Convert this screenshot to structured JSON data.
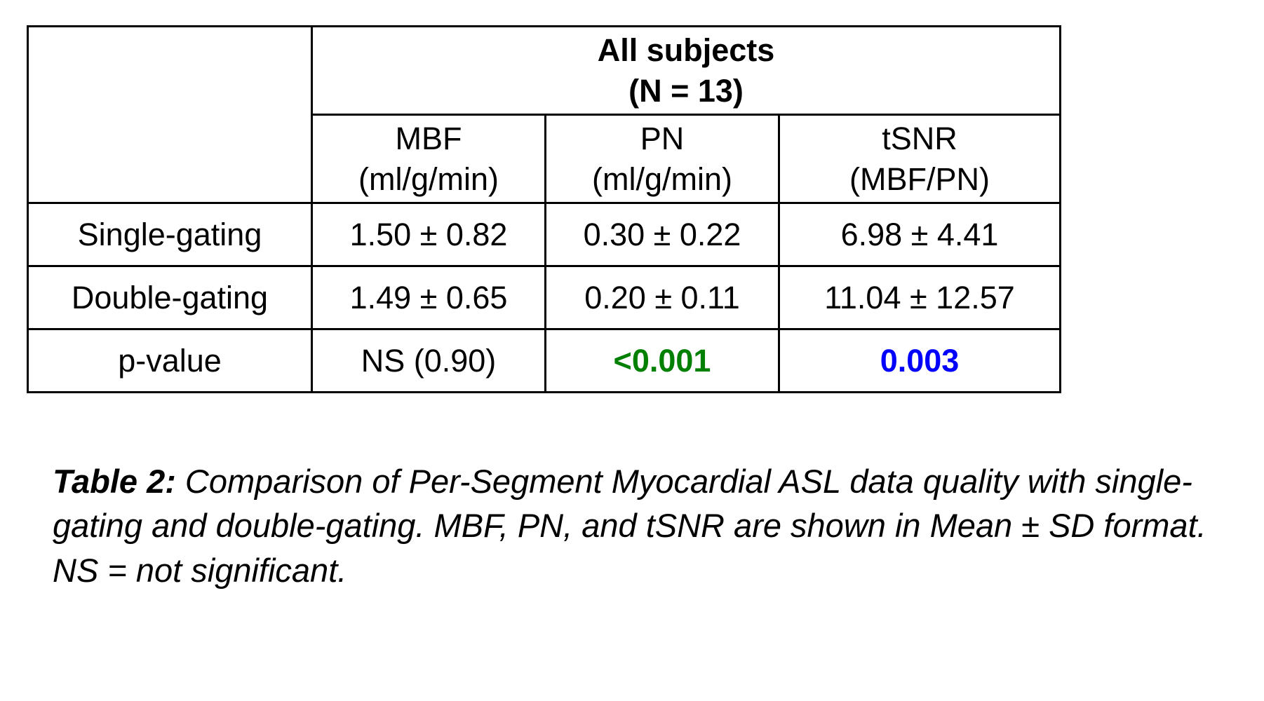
{
  "table": {
    "span_header_line1": "All subjects",
    "span_header_line2": "(N = 13)",
    "col_headers": [
      {
        "line1": "MBF",
        "line2": "(ml/g/min)"
      },
      {
        "line1": "PN",
        "line2": "(ml/g/min)"
      },
      {
        "line1": "tSNR",
        "line2": "(MBF/PN)"
      }
    ],
    "rows": [
      {
        "label": "Single-gating",
        "values": [
          "1.50 ± 0.82",
          "0.30 ± 0.22",
          "6.98 ± 4.41"
        ]
      },
      {
        "label": "Double-gating",
        "values": [
          "1.49 ± 0.65",
          "0.20 ± 0.11",
          "11.04 ± 12.57"
        ]
      },
      {
        "label": "p-value",
        "values": [
          "NS (0.90)",
          "<0.001",
          "0.003"
        ]
      }
    ]
  },
  "caption": {
    "label": "Table 2:",
    "text": " Comparison of Per-Segment Myocardial ASL data quality with single-gating and double-gating. MBF, PN, and tSNR are shown in Mean ± SD format. NS = not significant."
  },
  "colors": {
    "significant_green": "#008000",
    "significant_blue": "#0000ff"
  }
}
